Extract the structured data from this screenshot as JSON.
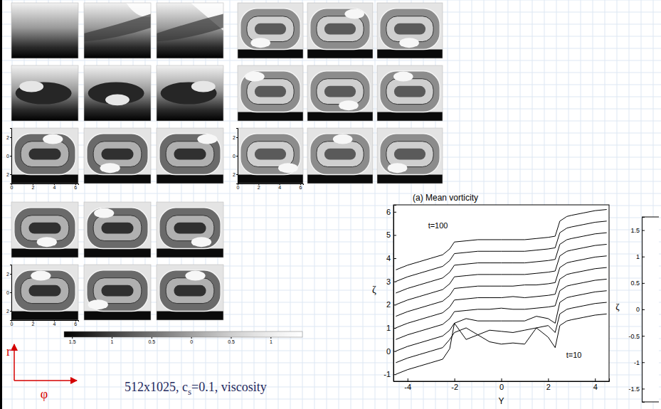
{
  "slide": {
    "caption": [
      "512x1025, c",
      "s",
      "=0.1, viscosity"
    ],
    "axis_labels": {
      "vertical": "r",
      "horizontal": "φ"
    }
  },
  "snapshots": {
    "xlim": [
      0,
      6.28
    ],
    "xticks": [
      0,
      2,
      4,
      6
    ],
    "ylim": [
      -3,
      3
    ],
    "yticks": [
      2,
      0,
      {
        "value": -2,
        "label": "2"
      }
    ]
  },
  "colorbar": {
    "range": [
      -1.6,
      1.4
    ],
    "ticks": [
      {
        "value": -1.5,
        "label": "1.5"
      },
      {
        "value": -1,
        "label": "1"
      },
      {
        "value": -0.5,
        "label": "0.5"
      },
      0,
      0.5,
      1
    ]
  },
  "chart_data": [
    {
      "type": "line",
      "title": "(a) Mean vorticity",
      "x_label": "Y",
      "y_label": "ζ",
      "x": [
        -4.5,
        -4,
        -3.5,
        -3,
        -2.5,
        -2.2,
        -2,
        -1.5,
        -1,
        -0.5,
        0,
        0.5,
        1,
        1.5,
        2,
        2.3,
        2.5,
        2.8,
        3,
        3.5,
        4,
        4.5
      ],
      "xlim": [
        -4.6,
        4.6
      ],
      "xticks": [
        -4,
        -2,
        0,
        2,
        4
      ],
      "ylim": [
        -1.3,
        6.3
      ],
      "yticks": [
        -1,
        0,
        1,
        2,
        3,
        4,
        5,
        6
      ],
      "series": [
        {
          "color": "#000000",
          "values": [
            -1.0,
            -0.8,
            -0.65,
            -0.5,
            -0.35,
            0.1,
            1.2,
            0.5,
            0.7,
            0.4,
            0.3,
            0.35,
            0.3,
            1.0,
            0.6,
            0.15,
            1.1,
            1.3,
            1.35,
            1.45,
            1.55,
            1.6
          ]
        },
        {
          "color": "#000000",
          "values": [
            -0.5,
            -0.3,
            -0.15,
            0.0,
            0.15,
            0.5,
            0.8,
            1.0,
            0.7,
            0.9,
            0.85,
            0.8,
            0.9,
            1.0,
            1.1,
            0.8,
            1.6,
            1.8,
            1.85,
            1.95,
            2.05,
            2.1
          ]
        },
        {
          "color": "#000000",
          "values": [
            0,
            0.2,
            0.35,
            0.5,
            0.65,
            0.9,
            1.2,
            1.4,
            1.3,
            1.3,
            1.3,
            1.3,
            1.3,
            1.5,
            1.4,
            1.2,
            2.1,
            2.3,
            2.35,
            2.45,
            2.55,
            2.6
          ]
        },
        {
          "color": "#000000",
          "values": [
            0.5,
            0.7,
            0.85,
            1.0,
            1.15,
            1.4,
            1.7,
            1.75,
            1.8,
            1.8,
            1.85,
            1.8,
            1.8,
            1.85,
            1.9,
            1.95,
            2.6,
            2.8,
            2.85,
            2.95,
            3.05,
            3.1
          ]
        },
        {
          "color": "#000000",
          "values": [
            1.0,
            1.2,
            1.35,
            1.5,
            1.65,
            1.9,
            2.2,
            2.25,
            2.3,
            2.3,
            2.3,
            2.35,
            2.3,
            2.35,
            2.4,
            2.45,
            3.1,
            3.3,
            3.35,
            3.45,
            3.55,
            3.6
          ]
        },
        {
          "color": "#000000",
          "values": [
            1.5,
            1.7,
            1.85,
            2.0,
            2.15,
            2.4,
            2.7,
            2.75,
            2.8,
            2.8,
            2.8,
            2.8,
            2.85,
            2.85,
            2.9,
            2.95,
            3.6,
            3.8,
            3.85,
            3.95,
            4.05,
            4.1
          ]
        },
        {
          "color": "#000000",
          "values": [
            2.0,
            2.2,
            2.35,
            2.5,
            2.65,
            2.9,
            3.2,
            3.25,
            3.3,
            3.3,
            3.3,
            3.3,
            3.3,
            3.35,
            3.4,
            3.45,
            4.1,
            4.3,
            4.35,
            4.45,
            4.55,
            4.6
          ]
        },
        {
          "color": "#000000",
          "values": [
            2.5,
            2.7,
            2.85,
            3.0,
            3.15,
            3.4,
            3.7,
            3.75,
            3.8,
            3.8,
            3.8,
            3.8,
            3.8,
            3.85,
            3.9,
            3.95,
            4.6,
            4.8,
            4.85,
            4.95,
            5.05,
            5.1
          ]
        },
        {
          "color": "#000000",
          "values": [
            3.0,
            3.2,
            3.35,
            3.5,
            3.65,
            3.9,
            4.2,
            4.25,
            4.3,
            4.3,
            4.3,
            4.3,
            4.3,
            4.35,
            4.4,
            4.45,
            5.1,
            5.3,
            5.35,
            5.45,
            5.55,
            5.6
          ]
        },
        {
          "color": "#000000",
          "values": [
            3.5,
            3.7,
            3.85,
            4.0,
            4.15,
            4.4,
            4.7,
            4.75,
            4.8,
            4.8,
            4.8,
            4.8,
            4.8,
            4.85,
            4.9,
            4.95,
            5.6,
            5.8,
            5.85,
            5.95,
            6.05,
            6.1
          ]
        }
      ],
      "annotations": [
        {
          "text": "t=100",
          "x": -2.7,
          "y": 5.3
        },
        {
          "text": "t=10",
          "x": 3.1,
          "y": -0.3
        }
      ]
    },
    {
      "type": "line",
      "y_label": "ζ",
      "ylim": [
        -1.75,
        1.75
      ],
      "yticks": [
        -1.5,
        -1,
        -0.5,
        0,
        0.5,
        1,
        1.5
      ]
    }
  ]
}
